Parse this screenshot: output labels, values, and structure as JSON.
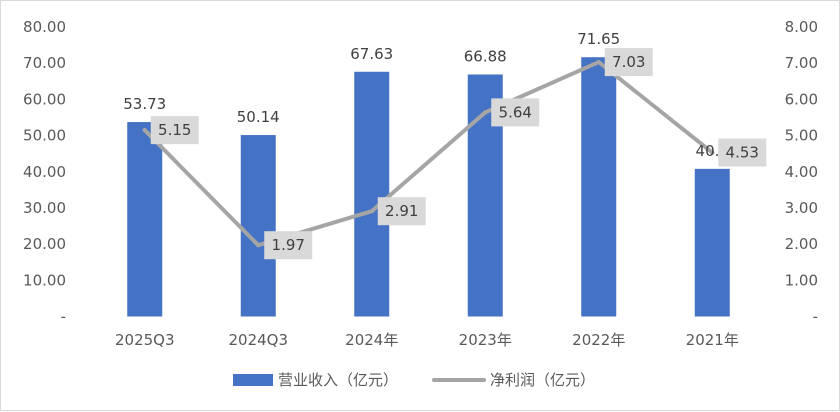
{
  "chart_data": {
    "type": "bar",
    "categories": [
      "2025Q3",
      "2024Q3",
      "2024年",
      "2023年",
      "2022年",
      "2021年"
    ],
    "series": [
      {
        "name": "营业收入（亿元）",
        "type": "bar",
        "axis": "left",
        "values": [
          53.73,
          50.14,
          67.63,
          66.88,
          71.65,
          40.8
        ],
        "labels": [
          "53.73",
          "50.14",
          "67.63",
          "66.88",
          "71.65",
          "40.8"
        ]
      },
      {
        "name": "净利润（亿元）",
        "type": "line",
        "axis": "right",
        "values": [
          5.15,
          1.97,
          2.91,
          5.64,
          7.03,
          4.53
        ],
        "labels": [
          "5.15",
          "1.97",
          "2.91",
          "5.64",
          "7.03",
          "4.53"
        ]
      }
    ],
    "y_left": {
      "lim": [
        0,
        80
      ],
      "ticks": [
        "-",
        "10.00",
        "20.00",
        "30.00",
        "40.00",
        "50.00",
        "60.00",
        "70.00",
        "80.00"
      ]
    },
    "y_right": {
      "lim": [
        0,
        8
      ],
      "ticks": [
        "-",
        "1.00",
        "2.00",
        "3.00",
        "4.00",
        "5.00",
        "6.00",
        "7.00",
        "8.00"
      ]
    },
    "grid": false,
    "legend_position": "bottom",
    "colors": {
      "bar": "#4472c4",
      "line": "#a5a5a5",
      "label_box": "#d9d9d9"
    }
  }
}
